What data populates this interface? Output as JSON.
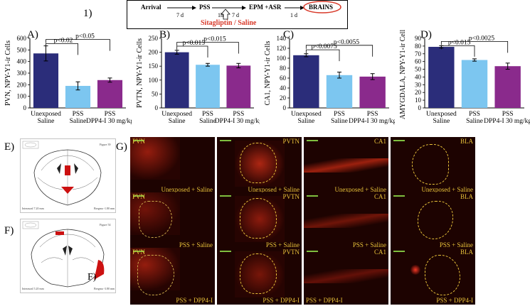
{
  "panel_number": "1)",
  "timeline": {
    "steps": [
      "Arrival",
      "PSS",
      "EPM +ASR",
      "BRAINS"
    ],
    "intervals": [
      "7 d",
      "1h",
      "7 d",
      "1 d"
    ],
    "treatment": "Sitagliptin / Saline",
    "colors": {
      "treatment": "#d83a2a",
      "circle": "#d83a2a"
    }
  },
  "panel_labels": {
    "a": "A)",
    "b": "B)",
    "c": "C)",
    "d": "D)",
    "e": "E)",
    "f": "F)",
    "g": "G)",
    "fj": "F)"
  },
  "charts": [
    {
      "id": "A",
      "ylabel": "PVN, NPY-Y1-ir Cells",
      "ylim": [
        0,
        600
      ],
      "yticks": [
        0,
        100,
        200,
        300,
        400,
        500,
        600
      ],
      "categories": [
        [
          "Unexposed",
          "Saline"
        ],
        [
          "PSS",
          "Saline"
        ],
        [
          "PSS",
          "DPP4-I 30 mg/kg"
        ]
      ],
      "values": [
        470,
        190,
        240
      ],
      "errors": [
        65,
        35,
        18
      ],
      "sig": [
        {
          "from": 0,
          "to": 1,
          "label": "p<0.02",
          "y": 555
        },
        {
          "from": 0,
          "to": 2,
          "label": "p<0.05",
          "y": 590
        }
      ]
    },
    {
      "id": "B",
      "ylabel": "PVTN, NPY-Y1-ir Cells",
      "ylim": [
        0,
        250
      ],
      "yticks": [
        0,
        50,
        100,
        150,
        200,
        250
      ],
      "categories": [
        [
          "Unexposed",
          "Saline"
        ],
        [
          "PSS",
          "Saline"
        ],
        [
          "PSS",
          "DPP4-I 30 mg/kg"
        ]
      ],
      "values": [
        200,
        155,
        152
      ],
      "errors": [
        7,
        5,
        8
      ],
      "sig": [
        {
          "from": 0,
          "to": 1,
          "label": "p<0.015",
          "y": 222
        },
        {
          "from": 0,
          "to": 2,
          "label": "p<0.015",
          "y": 236
        }
      ]
    },
    {
      "id": "C",
      "ylabel": "CA1, NPY-Y1-ir Cells",
      "ylim": [
        0,
        140
      ],
      "yticks": [
        0,
        20,
        40,
        60,
        80,
        100,
        120,
        140
      ],
      "categories": [
        [
          "Unexposed",
          "Saline"
        ],
        [
          "PSS",
          "Saline"
        ],
        [
          "PSS",
          "DPP4-I 30 mg/kg"
        ]
      ],
      "values": [
        106,
        66,
        63
      ],
      "errors": [
        3,
        6,
        6
      ],
      "sig": [
        {
          "from": 0,
          "to": 1,
          "label": "p<0.0075",
          "y": 117
        },
        {
          "from": 0,
          "to": 2,
          "label": "p<0.0055",
          "y": 126
        }
      ]
    },
    {
      "id": "D",
      "ylabel": "AMYGDALA, NPY-Y1-ir Cells",
      "ylim": [
        0,
        90
      ],
      "yticks": [
        0,
        10,
        20,
        30,
        40,
        50,
        60,
        70,
        80,
        90
      ],
      "categories": [
        [
          "Unexposed",
          "Saline"
        ],
        [
          "PSS",
          "Saline"
        ],
        [
          "PSS",
          "DPP4-I 30 mg/kg"
        ]
      ],
      "values": [
        79,
        62,
        54
      ],
      "errors": [
        1.5,
        1.5,
        4
      ],
      "sig": [
        {
          "from": 0,
          "to": 1,
          "label": "p<0.015",
          "y": 80.5
        },
        {
          "from": 0,
          "to": 2,
          "label": "p<0.0025",
          "y": 86
        }
      ]
    }
  ],
  "bar_colors": [
    "#2b2d7a",
    "#7cc6f0",
    "#8a2a8c"
  ],
  "atlas": {
    "figure_e": "Figure 39",
    "figure_f": "Figure 54",
    "interaural_e": "Interaural 7.20 mm",
    "bregma_e": "Bregma -1.80 mm",
    "interaural_f": "Interaural 5.20 mm",
    "bregma_f": "Bregma -3.80 mm"
  },
  "micrographs": {
    "columns": [
      "PVN",
      "PVTN",
      "CA1",
      "BLA"
    ],
    "rows": [
      "Unexposed + Saline",
      "PSS + Saline",
      "PSS + DPP4-I"
    ],
    "scale_label": "100 µm"
  }
}
